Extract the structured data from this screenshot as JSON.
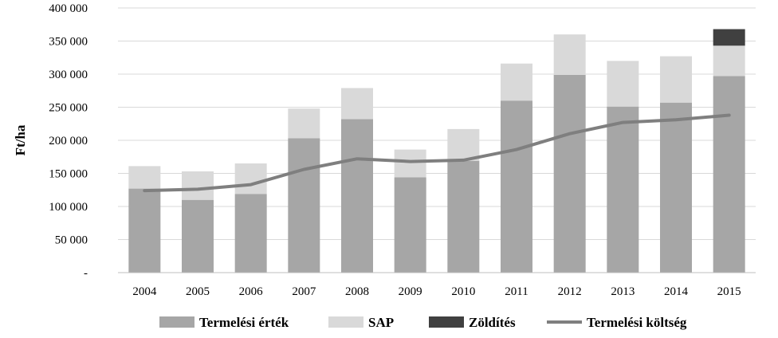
{
  "chart_data": {
    "type": "bar",
    "stacked": true,
    "title": "",
    "xlabel": "",
    "ylabel": "Ft/ha",
    "ylim": [
      0,
      400000
    ],
    "yticks": [
      0,
      50000,
      100000,
      150000,
      200000,
      250000,
      300000,
      350000,
      400000
    ],
    "ytick_labels": [
      "-",
      "50 000",
      "100 000",
      "150 000",
      "200 000",
      "250 000",
      "300 000",
      "350 000",
      "400 000"
    ],
    "grid": true,
    "legend_position": "bottom",
    "categories": [
      "2004",
      "2005",
      "2006",
      "2007",
      "2008",
      "2009",
      "2010",
      "2011",
      "2012",
      "2013",
      "2014",
      "2015"
    ],
    "series": [
      {
        "name": "Termelési érték",
        "kind": "bar",
        "color": "#a6a6a6",
        "values": [
          127000,
          110000,
          119000,
          203000,
          232000,
          144000,
          169000,
          260000,
          299000,
          251000,
          257000,
          297000
        ]
      },
      {
        "name": "SAP",
        "kind": "bar",
        "color": "#d9d9d9",
        "values": [
          34000,
          43000,
          46000,
          45000,
          47000,
          42000,
          48000,
          56000,
          61000,
          69000,
          70000,
          46000
        ]
      },
      {
        "name": "Zöldítés",
        "kind": "bar",
        "color": "#404040",
        "values": [
          0,
          0,
          0,
          0,
          0,
          0,
          0,
          0,
          0,
          0,
          0,
          25000
        ]
      },
      {
        "name": "Termelési költség",
        "kind": "line",
        "color": "#7f7f7f",
        "values": [
          124000,
          126000,
          133000,
          156000,
          172000,
          168000,
          170000,
          186000,
          210000,
          227000,
          231000,
          238000
        ]
      }
    ]
  }
}
